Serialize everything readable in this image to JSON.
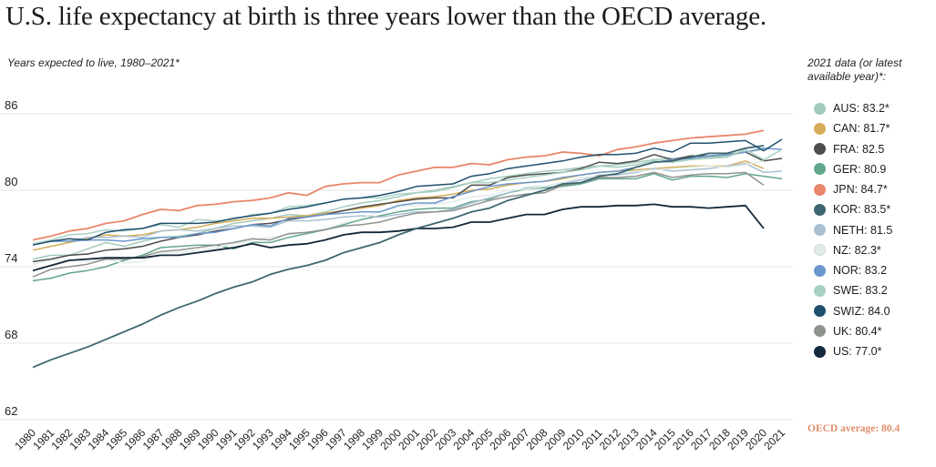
{
  "title": "U.S. life expectancy at birth is three years lower than the OECD average.",
  "subtitle": "Years expected to live, 1980–2021*",
  "legend_title": "2021 data (or latest available year)*:",
  "oecd_note": "OECD average: 80.4",
  "chart_data": {
    "type": "line",
    "title": "U.S. life expectancy at birth is three years lower than the OECD average.",
    "subtitle": "Years expected to live, 1980–2021*",
    "xlabel": "",
    "ylabel": "",
    "ylim": [
      62,
      86
    ],
    "yticks": [
      62,
      68,
      74,
      80,
      86
    ],
    "grid": "horizontal",
    "legend_position": "right",
    "x": [
      1980,
      1981,
      1982,
      1983,
      1984,
      1985,
      1986,
      1987,
      1988,
      1989,
      1990,
      1991,
      1992,
      1993,
      1994,
      1995,
      1996,
      1997,
      1998,
      1999,
      2000,
      2001,
      2002,
      2003,
      2004,
      2005,
      2006,
      2007,
      2008,
      2009,
      2010,
      2011,
      2012,
      2013,
      2014,
      2015,
      2016,
      2017,
      2018,
      2019,
      2020,
      2021
    ],
    "series": [
      {
        "name": "AUS: 83.2*",
        "color": "#a3cbbd",
        "values": [
          74.6,
          74.9,
          74.9,
          75.4,
          75.9,
          75.6,
          76.0,
          76.3,
          76.4,
          76.6,
          77.0,
          77.4,
          77.6,
          77.8,
          78.1,
          78.0,
          78.3,
          78.7,
          79.0,
          79.2,
          79.5,
          79.8,
          80.0,
          80.3,
          80.6,
          80.9,
          81.1,
          81.3,
          81.5,
          81.6,
          81.8,
          81.9,
          82.0,
          82.2,
          82.4,
          82.5,
          82.5,
          82.6,
          82.7,
          83.0,
          83.2,
          null
        ]
      },
      {
        "name": "CAN: 81.7*",
        "color": "#d5ad58",
        "values": [
          75.3,
          75.6,
          75.9,
          76.2,
          76.5,
          76.4,
          76.5,
          76.8,
          76.9,
          77.1,
          77.4,
          77.6,
          77.8,
          77.8,
          77.9,
          78.0,
          78.2,
          78.4,
          78.6,
          78.8,
          79.2,
          79.4,
          79.5,
          79.7,
          80.0,
          80.1,
          80.4,
          80.6,
          80.7,
          80.9,
          81.2,
          81.4,
          81.5,
          81.6,
          81.7,
          81.8,
          81.9,
          81.9,
          81.9,
          82.3,
          81.7,
          null
        ]
      },
      {
        "name": "FRA: 82.5",
        "color": "#4d4d4d",
        "values": [
          74.4,
          74.6,
          74.9,
          75.0,
          75.3,
          75.4,
          75.6,
          76.0,
          76.3,
          76.5,
          76.8,
          77.0,
          77.3,
          77.4,
          77.7,
          77.9,
          78.1,
          78.4,
          78.7,
          78.9,
          79.1,
          79.3,
          79.4,
          79.4,
          80.4,
          80.4,
          81.0,
          81.2,
          81.3,
          81.4,
          81.7,
          82.2,
          82.1,
          82.3,
          82.8,
          82.4,
          82.7,
          82.7,
          82.8,
          83.0,
          82.3,
          82.5
        ]
      },
      {
        "name": "GER: 80.9",
        "color": "#62a68c",
        "values": [
          72.9,
          73.1,
          73.5,
          73.7,
          74.0,
          74.5,
          74.9,
          75.5,
          75.6,
          75.7,
          75.7,
          75.4,
          75.9,
          75.9,
          76.3,
          76.6,
          76.9,
          77.3,
          77.7,
          78.0,
          78.3,
          78.5,
          78.6,
          78.6,
          79.1,
          79.3,
          79.8,
          80.1,
          80.2,
          80.3,
          80.5,
          80.9,
          80.9,
          80.9,
          81.3,
          80.8,
          81.1,
          81.1,
          81.0,
          81.3,
          81.1,
          80.9
        ]
      },
      {
        "name": "JPN: 84.7*",
        "color": "#e8866b",
        "values": [
          76.1,
          76.4,
          76.8,
          77.0,
          77.4,
          77.6,
          78.1,
          78.5,
          78.4,
          78.8,
          78.9,
          79.1,
          79.2,
          79.4,
          79.8,
          79.6,
          80.3,
          80.5,
          80.6,
          80.6,
          81.2,
          81.5,
          81.8,
          81.8,
          82.1,
          82.0,
          82.4,
          82.6,
          82.7,
          83.0,
          82.9,
          82.7,
          83.2,
          83.4,
          83.7,
          83.9,
          84.1,
          84.2,
          84.3,
          84.4,
          84.7,
          null
        ]
      },
      {
        "name": "KOR: 83.5*",
        "color": "#3f6670",
        "values": [
          66.1,
          66.7,
          67.2,
          67.7,
          68.3,
          68.9,
          69.5,
          70.2,
          70.8,
          71.3,
          71.9,
          72.4,
          72.8,
          73.4,
          73.8,
          74.1,
          74.5,
          75.1,
          75.5,
          75.9,
          76.5,
          77.0,
          77.4,
          77.8,
          78.3,
          78.6,
          79.2,
          79.6,
          80.0,
          80.5,
          80.6,
          81.1,
          81.3,
          81.8,
          82.2,
          82.3,
          82.6,
          82.9,
          82.9,
          83.3,
          83.5,
          null
        ]
      },
      {
        "name": "NETH: 81.5",
        "color": "#a9c1d1",
        "values": [
          75.8,
          76.0,
          76.0,
          76.3,
          76.3,
          76.4,
          76.3,
          76.8,
          76.9,
          76.8,
          77.0,
          77.2,
          77.2,
          77.1,
          77.6,
          77.6,
          77.7,
          77.9,
          78.0,
          77.9,
          78.1,
          78.3,
          78.3,
          78.5,
          79.0,
          79.4,
          79.8,
          80.2,
          80.3,
          80.6,
          80.8,
          81.2,
          81.2,
          81.4,
          81.7,
          81.5,
          81.6,
          81.7,
          81.9,
          82.1,
          81.4,
          81.5
        ]
      },
      {
        "name": "NZ: 82.3*",
        "color": "#e3ede8",
        "values": [
          74.2,
          74.5,
          74.5,
          74.4,
          74.6,
          74.3,
          74.4,
          75.1,
          75.1,
          75.3,
          75.5,
          75.8,
          76.1,
          76.3,
          76.5,
          76.7,
          77.0,
          77.4,
          77.8,
          78.3,
          78.7,
          78.8,
          78.9,
          79.1,
          79.5,
          79.6,
          80.0,
          80.1,
          80.3,
          80.6,
          81.0,
          81.1,
          81.3,
          81.5,
          81.6,
          81.7,
          81.8,
          81.9,
          81.8,
          82.0,
          82.3,
          null
        ]
      },
      {
        "name": "NOR: 83.2",
        "color": "#6a97cc",
        "values": [
          75.8,
          76.0,
          76.0,
          76.1,
          76.1,
          76.0,
          76.2,
          76.3,
          76.3,
          76.6,
          76.7,
          77.0,
          77.3,
          77.2,
          77.8,
          77.9,
          78.1,
          78.2,
          78.3,
          78.3,
          78.8,
          79.0,
          79.0,
          79.5,
          79.9,
          80.3,
          80.5,
          80.6,
          80.7,
          81.0,
          81.2,
          81.4,
          81.5,
          81.8,
          82.2,
          82.4,
          82.5,
          82.7,
          82.8,
          83.0,
          83.3,
          83.2
        ]
      },
      {
        "name": "SWE: 83.2",
        "color": "#a8d0c3",
        "values": [
          75.8,
          76.1,
          76.5,
          76.6,
          76.9,
          76.8,
          77.0,
          77.3,
          77.1,
          77.7,
          77.6,
          77.7,
          78.1,
          78.2,
          78.7,
          78.8,
          79.0,
          79.3,
          79.4,
          79.4,
          79.7,
          79.8,
          79.9,
          80.2,
          80.6,
          80.6,
          80.8,
          81.0,
          81.2,
          81.4,
          81.6,
          81.9,
          81.8,
          82.0,
          82.3,
          82.2,
          82.4,
          82.5,
          82.6,
          83.2,
          82.4,
          83.2
        ]
      },
      {
        "name": "SWIZ: 84.0",
        "color": "#1f4f6e",
        "values": [
          75.7,
          76.0,
          76.2,
          76.1,
          76.7,
          76.9,
          77.0,
          77.4,
          77.4,
          77.4,
          77.5,
          77.8,
          78.0,
          78.2,
          78.5,
          78.7,
          79.0,
          79.3,
          79.4,
          79.6,
          79.9,
          80.3,
          80.4,
          80.5,
          81.1,
          81.3,
          81.7,
          81.9,
          82.1,
          82.3,
          82.6,
          82.8,
          82.8,
          82.9,
          83.3,
          83.0,
          83.7,
          83.7,
          83.8,
          83.9,
          83.1,
          84.0
        ]
      },
      {
        "name": "UK: 80.4*",
        "color": "#8f938e",
        "values": [
          73.2,
          73.8,
          74.0,
          74.2,
          74.6,
          74.6,
          74.8,
          75.2,
          75.3,
          75.5,
          75.7,
          75.9,
          76.2,
          76.1,
          76.6,
          76.7,
          76.9,
          77.2,
          77.3,
          77.5,
          77.9,
          78.2,
          78.3,
          78.4,
          78.8,
          79.2,
          79.5,
          79.7,
          79.8,
          80.4,
          80.6,
          81.0,
          81.0,
          81.1,
          81.4,
          81.0,
          81.2,
          81.3,
          81.3,
          81.4,
          80.4,
          null
        ]
      },
      {
        "name": "US: 77.0*",
        "color": "#13283a",
        "values": [
          73.7,
          74.1,
          74.5,
          74.6,
          74.7,
          74.7,
          74.7,
          74.9,
          74.9,
          75.1,
          75.3,
          75.5,
          75.8,
          75.5,
          75.7,
          75.8,
          76.1,
          76.5,
          76.7,
          76.7,
          76.8,
          77.0,
          77.0,
          77.1,
          77.5,
          77.5,
          77.8,
          78.1,
          78.1,
          78.5,
          78.7,
          78.7,
          78.8,
          78.8,
          78.9,
          78.7,
          78.7,
          78.6,
          78.7,
          78.8,
          77.0,
          null
        ]
      }
    ]
  }
}
